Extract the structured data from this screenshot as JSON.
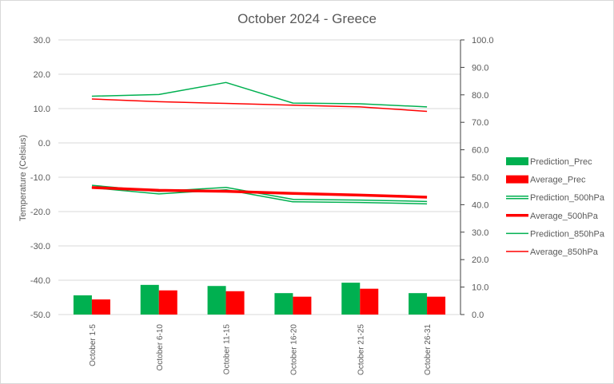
{
  "chart_data": {
    "type": "bar+line",
    "title": "October 2024 - Greece",
    "ylabel": "Temperature (Celsius)",
    "y2label": "",
    "categories": [
      "October 1-5",
      "October 6-10",
      "October 11-15",
      "October 16-20",
      "October 21-25",
      "October 26-31"
    ],
    "ylim": [
      -50,
      30
    ],
    "y_ticks": [
      "30.0",
      "20.0",
      "10.0",
      "0.0",
      "-10.0",
      "-20.0",
      "-30.0",
      "-40.0",
      "-50.0"
    ],
    "y2lim": [
      0,
      100
    ],
    "y2_ticks": [
      "100.0",
      "90.0",
      "80.0",
      "70.0",
      "60.0",
      "50.0",
      "40.0",
      "30.0",
      "20.0",
      "10.0",
      "0.0"
    ],
    "grid": true,
    "legend_position": "right",
    "series": [
      {
        "name": "Prediction_Prec",
        "kind": "bar",
        "axis": "right",
        "color": "#00b050",
        "values": [
          7.0,
          10.8,
          10.4,
          7.8,
          11.6,
          7.8
        ]
      },
      {
        "name": "Average_Prec",
        "kind": "bar",
        "axis": "right",
        "color": "#ff0000",
        "values": [
          5.5,
          8.8,
          8.5,
          6.5,
          9.4,
          6.5
        ]
      },
      {
        "name": "Prediction_500hPa",
        "kind": "line",
        "style": "double",
        "axis": "left",
        "color": "#00b050",
        "values": [
          -12.7,
          -14.5,
          -13.3,
          -16.8,
          -17.0,
          -17.4
        ]
      },
      {
        "name": "Average_500hPa",
        "kind": "line",
        "style": "thick",
        "axis": "left",
        "color": "#ff0000",
        "values": [
          -13.0,
          -13.8,
          -14.1,
          -14.7,
          -15.2,
          -15.8
        ]
      },
      {
        "name": "Prediction_850hPa",
        "kind": "line",
        "style": "thin",
        "axis": "left",
        "color": "#00b050",
        "values": [
          13.6,
          14.1,
          17.6,
          11.6,
          11.4,
          10.5
        ]
      },
      {
        "name": "Average_850hPa",
        "kind": "line",
        "style": "thin",
        "axis": "left",
        "color": "#ff0000",
        "values": [
          12.8,
          12.0,
          11.5,
          11.0,
          10.5,
          9.2
        ]
      }
    ]
  }
}
